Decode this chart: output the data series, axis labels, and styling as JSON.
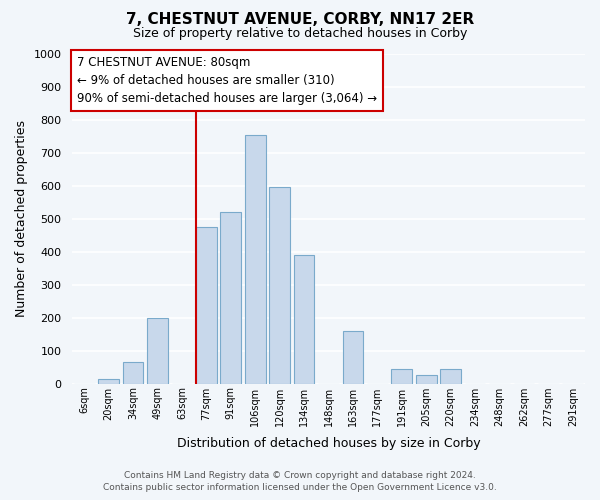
{
  "title": "7, CHESTNUT AVENUE, CORBY, NN17 2ER",
  "subtitle": "Size of property relative to detached houses in Corby",
  "xlabel": "Distribution of detached houses by size in Corby",
  "ylabel": "Number of detached properties",
  "bar_labels": [
    "6sqm",
    "20sqm",
    "34sqm",
    "49sqm",
    "63sqm",
    "77sqm",
    "91sqm",
    "106sqm",
    "120sqm",
    "134sqm",
    "148sqm",
    "163sqm",
    "177sqm",
    "191sqm",
    "205sqm",
    "220sqm",
    "234sqm",
    "248sqm",
    "262sqm",
    "277sqm",
    "291sqm"
  ],
  "bar_heights": [
    0,
    15,
    65,
    200,
    0,
    475,
    520,
    755,
    595,
    390,
    0,
    160,
    0,
    45,
    25,
    45,
    0,
    0,
    0,
    0,
    0
  ],
  "bar_color": "#c8d8eb",
  "bar_edge_color": "#7aaacb",
  "vline_x_index": 5,
  "vline_color": "#cc0000",
  "annotation_title": "7 CHESTNUT AVENUE: 80sqm",
  "annotation_line1": "← 9% of detached houses are smaller (310)",
  "annotation_line2": "90% of semi-detached houses are larger (3,064) →",
  "annotation_box_facecolor": "#ffffff",
  "annotation_box_edgecolor": "#cc0000",
  "ylim": [
    0,
    1000
  ],
  "yticks": [
    0,
    100,
    200,
    300,
    400,
    500,
    600,
    700,
    800,
    900,
    1000
  ],
  "footer1": "Contains HM Land Registry data © Crown copyright and database right 2024.",
  "footer2": "Contains public sector information licensed under the Open Government Licence v3.0.",
  "bg_color": "#f2f6fa",
  "grid_color": "#ffffff",
  "title_fontsize": 11,
  "subtitle_fontsize": 9,
  "ylabel_fontsize": 9,
  "xlabel_fontsize": 9,
  "tick_fontsize": 8,
  "xtick_fontsize": 7,
  "footer_fontsize": 6.5,
  "annotation_fontsize": 8.5
}
